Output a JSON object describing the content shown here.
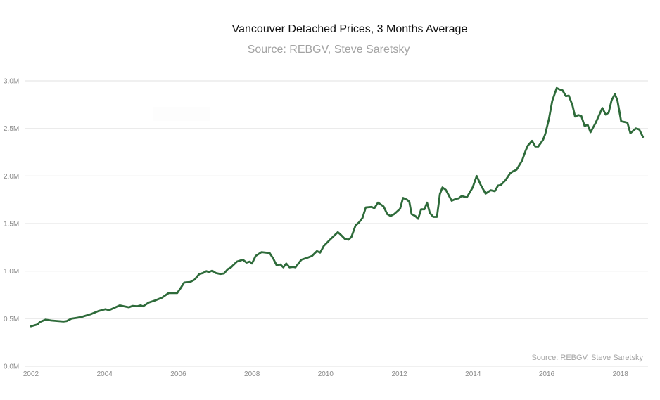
{
  "chart_data": {
    "type": "line",
    "title": "Vancouver Detached Prices, 3 Months Average",
    "subtitle": "Source: REBGV, Steve Saretsky",
    "credit": "Source: REBGV, Steve Saretsky",
    "xlabel": "",
    "ylabel": "",
    "xlim": [
      2002,
      2018.75
    ],
    "ylim": [
      0,
      3000000
    ],
    "grid": true,
    "legend": "none",
    "y_ticks": [
      {
        "value": 0,
        "label": "0.0M"
      },
      {
        "value": 500000,
        "label": "0.5M"
      },
      {
        "value": 1000000,
        "label": "1.0M"
      },
      {
        "value": 1500000,
        "label": "1.5M"
      },
      {
        "value": 2000000,
        "label": "2.0M"
      },
      {
        "value": 2500000,
        "label": "2.5M"
      },
      {
        "value": 3000000,
        "label": "3.0M"
      }
    ],
    "x_ticks": [
      {
        "value": 2002,
        "label": "2002"
      },
      {
        "value": 2004,
        "label": "2004"
      },
      {
        "value": 2006,
        "label": "2006"
      },
      {
        "value": 2008,
        "label": "2008"
      },
      {
        "value": 2010,
        "label": "2010"
      },
      {
        "value": 2012,
        "label": "2012"
      },
      {
        "value": 2014,
        "label": "2014"
      },
      {
        "value": 2016,
        "label": "2016"
      },
      {
        "value": 2018,
        "label": "2018"
      }
    ],
    "series": [
      {
        "name": "Vancouver Detached 3-Month Average Price",
        "color": "#2e6b3a",
        "points": [
          [
            2002.0,
            420000
          ],
          [
            2002.18,
            440000
          ],
          [
            2002.24,
            465000
          ],
          [
            2002.4,
            490000
          ],
          [
            2002.56,
            480000
          ],
          [
            2002.88,
            470000
          ],
          [
            2002.97,
            475000
          ],
          [
            2003.1,
            500000
          ],
          [
            2003.26,
            510000
          ],
          [
            2003.39,
            520000
          ],
          [
            2003.64,
            550000
          ],
          [
            2003.83,
            580000
          ],
          [
            2004.02,
            600000
          ],
          [
            2004.12,
            590000
          ],
          [
            2004.41,
            640000
          ],
          [
            2004.53,
            630000
          ],
          [
            2004.66,
            620000
          ],
          [
            2004.76,
            635000
          ],
          [
            2004.88,
            630000
          ],
          [
            2004.98,
            640000
          ],
          [
            2005.04,
            630000
          ],
          [
            2005.2,
            670000
          ],
          [
            2005.36,
            690000
          ],
          [
            2005.55,
            720000
          ],
          [
            2005.74,
            770000
          ],
          [
            2005.97,
            770000
          ],
          [
            2006.06,
            820000
          ],
          [
            2006.16,
            880000
          ],
          [
            2006.32,
            885000
          ],
          [
            2006.44,
            910000
          ],
          [
            2006.57,
            970000
          ],
          [
            2006.67,
            980000
          ],
          [
            2006.76,
            1000000
          ],
          [
            2006.83,
            990000
          ],
          [
            2006.92,
            1005000
          ],
          [
            2007.02,
            980000
          ],
          [
            2007.14,
            970000
          ],
          [
            2007.24,
            975000
          ],
          [
            2007.34,
            1020000
          ],
          [
            2007.43,
            1040000
          ],
          [
            2007.59,
            1100000
          ],
          [
            2007.75,
            1120000
          ],
          [
            2007.85,
            1090000
          ],
          [
            2007.94,
            1100000
          ],
          [
            2008.0,
            1080000
          ],
          [
            2008.1,
            1160000
          ],
          [
            2008.26,
            1200000
          ],
          [
            2008.48,
            1190000
          ],
          [
            2008.58,
            1130000
          ],
          [
            2008.67,
            1060000
          ],
          [
            2008.77,
            1070000
          ],
          [
            2008.85,
            1040000
          ],
          [
            2008.93,
            1080000
          ],
          [
            2009.02,
            1040000
          ],
          [
            2009.12,
            1045000
          ],
          [
            2009.18,
            1040000
          ],
          [
            2009.34,
            1120000
          ],
          [
            2009.5,
            1140000
          ],
          [
            2009.63,
            1160000
          ],
          [
            2009.76,
            1210000
          ],
          [
            2009.85,
            1195000
          ],
          [
            2009.95,
            1265000
          ],
          [
            2010.14,
            1340000
          ],
          [
            2010.33,
            1410000
          ],
          [
            2010.39,
            1390000
          ],
          [
            2010.52,
            1340000
          ],
          [
            2010.62,
            1330000
          ],
          [
            2010.7,
            1360000
          ],
          [
            2010.81,
            1480000
          ],
          [
            2010.9,
            1510000
          ],
          [
            2011.0,
            1560000
          ],
          [
            2011.09,
            1670000
          ],
          [
            2011.25,
            1675000
          ],
          [
            2011.32,
            1660000
          ],
          [
            2011.42,
            1720000
          ],
          [
            2011.57,
            1680000
          ],
          [
            2011.67,
            1600000
          ],
          [
            2011.76,
            1580000
          ],
          [
            2011.86,
            1600000
          ],
          [
            2012.02,
            1655000
          ],
          [
            2012.1,
            1770000
          ],
          [
            2012.21,
            1750000
          ],
          [
            2012.27,
            1730000
          ],
          [
            2012.33,
            1600000
          ],
          [
            2012.43,
            1580000
          ],
          [
            2012.51,
            1550000
          ],
          [
            2012.59,
            1650000
          ],
          [
            2012.68,
            1650000
          ],
          [
            2012.75,
            1720000
          ],
          [
            2012.83,
            1610000
          ],
          [
            2012.92,
            1570000
          ],
          [
            2013.02,
            1570000
          ],
          [
            2013.1,
            1810000
          ],
          [
            2013.17,
            1880000
          ],
          [
            2013.26,
            1855000
          ],
          [
            2013.42,
            1740000
          ],
          [
            2013.54,
            1760000
          ],
          [
            2013.61,
            1765000
          ],
          [
            2013.69,
            1790000
          ],
          [
            2013.83,
            1775000
          ],
          [
            2013.99,
            1880000
          ],
          [
            2014.1,
            2000000
          ],
          [
            2014.21,
            1905000
          ],
          [
            2014.34,
            1815000
          ],
          [
            2014.48,
            1850000
          ],
          [
            2014.59,
            1840000
          ],
          [
            2014.68,
            1900000
          ],
          [
            2014.75,
            1905000
          ],
          [
            2014.88,
            1955000
          ],
          [
            2015.01,
            2030000
          ],
          [
            2015.09,
            2050000
          ],
          [
            2015.18,
            2065000
          ],
          [
            2015.33,
            2160000
          ],
          [
            2015.43,
            2270000
          ],
          [
            2015.49,
            2320000
          ],
          [
            2015.6,
            2370000
          ],
          [
            2015.69,
            2310000
          ],
          [
            2015.77,
            2310000
          ],
          [
            2015.9,
            2380000
          ],
          [
            2015.96,
            2440000
          ],
          [
            2016.06,
            2600000
          ],
          [
            2016.15,
            2790000
          ],
          [
            2016.27,
            2925000
          ],
          [
            2016.35,
            2910000
          ],
          [
            2016.43,
            2900000
          ],
          [
            2016.52,
            2840000
          ],
          [
            2016.6,
            2845000
          ],
          [
            2016.7,
            2740000
          ],
          [
            2016.77,
            2625000
          ],
          [
            2016.86,
            2640000
          ],
          [
            2016.94,
            2630000
          ],
          [
            2017.03,
            2525000
          ],
          [
            2017.11,
            2540000
          ],
          [
            2017.19,
            2460000
          ],
          [
            2017.33,
            2560000
          ],
          [
            2017.51,
            2715000
          ],
          [
            2017.6,
            2645000
          ],
          [
            2017.68,
            2665000
          ],
          [
            2017.76,
            2795000
          ],
          [
            2017.85,
            2860000
          ],
          [
            2017.92,
            2795000
          ],
          [
            2018.02,
            2575000
          ],
          [
            2018.19,
            2560000
          ],
          [
            2018.27,
            2450000
          ],
          [
            2018.42,
            2500000
          ],
          [
            2018.51,
            2490000
          ],
          [
            2018.61,
            2410000
          ]
        ]
      }
    ]
  }
}
